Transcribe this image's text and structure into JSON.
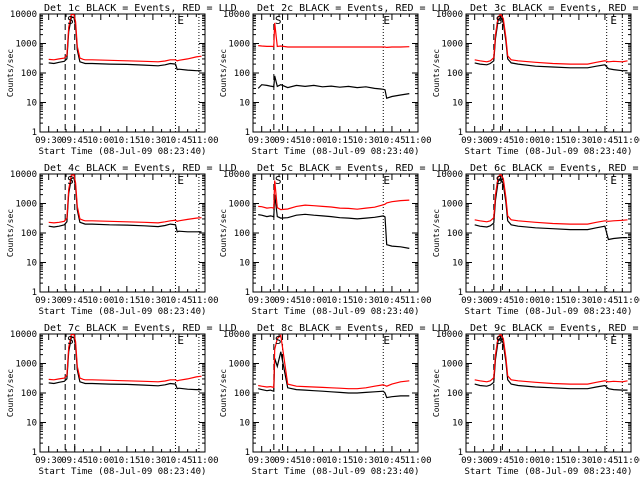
{
  "figure": {
    "type": "line",
    "start_time": "08-Jul-09 08:23:40",
    "xlabel": "Start Time (08-Jul-09 08:23:40)",
    "ylabel": "Counts/sec",
    "series_legend": "BLACK = Events, RED = LLD",
    "y_scale": "log",
    "ylim": [
      1,
      10000
    ],
    "y_ticks": [
      1,
      10,
      100,
      1000,
      10000
    ],
    "y_tick_labels": [
      "1",
      "10",
      "100",
      "1000",
      "10000"
    ],
    "x_tick_labels": [
      "09:30",
      "09:45",
      "10:00",
      "10:15",
      "10:30",
      "10:45",
      "11:00"
    ],
    "xlim_min": [
      0,
      95
    ],
    "x_ticks_min": [
      5,
      20,
      35,
      50,
      65,
      80,
      95
    ],
    "x_ticks_note": "minutes after 09:25",
    "colors": {
      "events": "#000000",
      "lld": "#ff0000",
      "axis": "#000000"
    },
    "markers": {
      "S": "S",
      "E": "E"
    }
  },
  "chart_data": [
    {
      "type": "line",
      "panel": 1,
      "title": "Det 1c BLACK = Events, RED = LLD",
      "ylim": [
        1,
        10000
      ],
      "x_min": [
        5,
        8,
        11,
        14,
        15.5,
        16.5,
        18,
        19.5,
        20.5,
        21.5,
        23,
        25,
        26,
        30,
        40,
        50,
        60,
        68,
        72,
        75,
        78,
        79,
        80,
        85,
        90,
        93
      ],
      "series": [
        {
          "name": "Events",
          "values": [
            220,
            210,
            230,
            250,
            300,
            2500,
            7500,
            7800,
            4000,
            600,
            240,
            220,
            210,
            210,
            200,
            195,
            185,
            175,
            190,
            210,
            200,
            130,
            135,
            125,
            120,
            120
          ]
        },
        {
          "name": "LLD",
          "values": [
            290,
            280,
            300,
            320,
            400,
            3500,
            9500,
            9800,
            5500,
            800,
            320,
            290,
            280,
            280,
            270,
            260,
            250,
            240,
            255,
            280,
            280,
            260,
            270,
            300,
            350,
            370
          ]
        }
      ],
      "markers": [
        {
          "label": "S",
          "x_min": 17.5
        },
        {
          "label": "E",
          "x_min": 81
        }
      ],
      "dash_lines_min": [
        14.5,
        20
      ],
      "dotted_lines_min": [
        78,
        91.5
      ]
    },
    {
      "type": "line",
      "panel": 2,
      "title": "Det 2c BLACK = Events, RED = LLD",
      "ylim": [
        1,
        10000
      ],
      "x_min": [
        3,
        5,
        8,
        10,
        11,
        12,
        12.5,
        14,
        16,
        20,
        25,
        30,
        35,
        40,
        45,
        50,
        55,
        60,
        65,
        70,
        75,
        76,
        77,
        80,
        85,
        90
      ],
      "series": [
        {
          "name": "Events",
          "values": [
            30,
            40,
            38,
            36,
            35,
            34,
            80,
            35,
            40,
            32,
            38,
            35,
            38,
            34,
            36,
            33,
            35,
            32,
            34,
            30,
            28,
            27,
            14,
            16,
            18,
            20
          ]
        },
        {
          "name": "LLD",
          "values": [
            850,
            820,
            800,
            800,
            800,
            780,
            5000,
            790,
            820,
            760,
            760,
            760,
            760,
            760,
            760,
            760,
            760,
            760,
            760,
            760,
            760,
            760,
            740,
            760,
            760,
            780
          ]
        }
      ],
      "markers": [
        {
          "label": "S",
          "x_min": 14.5
        },
        {
          "label": "E",
          "x_min": 77
        }
      ],
      "dash_lines_min": [
        12,
        17
      ],
      "dotted_lines_min": [
        75
      ]
    },
    {
      "type": "line",
      "panel": 3,
      "title": "Det 3c BLACK = Events, RED = LLD",
      "ylim": [
        1,
        10000
      ],
      "x_min": [
        5,
        8,
        12,
        14,
        16,
        17,
        18.5,
        20,
        21.5,
        23,
        24,
        26,
        30,
        40,
        50,
        60,
        70,
        75,
        80,
        82,
        85,
        90,
        93
      ],
      "series": [
        {
          "name": "Events",
          "values": [
            220,
            200,
            190,
            210,
            260,
            1500,
            6000,
            8000,
            5000,
            1200,
            300,
            220,
            200,
            170,
            160,
            150,
            150,
            170,
            190,
            140,
            130,
            120,
            120
          ]
        },
        {
          "name": "LLD",
          "values": [
            280,
            260,
            240,
            260,
            330,
            2000,
            8000,
            9800,
            7000,
            1600,
            380,
            280,
            260,
            230,
            210,
            200,
            200,
            230,
            260,
            240,
            250,
            240,
            260
          ]
        }
      ],
      "markers": [
        {
          "label": "S",
          "x_min": 19
        },
        {
          "label": "E",
          "x_min": 85
        }
      ],
      "dash_lines_min": [
        16,
        21
      ],
      "dotted_lines_min": [
        81,
        90
      ]
    },
    {
      "type": "line",
      "panel": 4,
      "title": "Det 4c BLACK = Events, RED = LLD",
      "ylim": [
        1,
        10000
      ],
      "x_min": [
        5,
        8,
        11,
        14,
        15.5,
        16.5,
        18,
        19.5,
        20.5,
        21.5,
        23,
        25,
        26,
        30,
        40,
        50,
        60,
        68,
        72,
        75,
        78,
        79,
        80,
        85,
        90,
        93
      ],
      "series": [
        {
          "name": "Events",
          "values": [
            170,
            160,
            170,
            190,
            240,
            2200,
            7000,
            7500,
            3800,
            600,
            230,
            210,
            200,
            200,
            190,
            185,
            175,
            165,
            180,
            200,
            190,
            110,
            115,
            110,
            110,
            110
          ]
        },
        {
          "name": "LLD",
          "values": [
            230,
            220,
            230,
            250,
            320,
            3000,
            9000,
            9500,
            5000,
            800,
            300,
            270,
            260,
            260,
            250,
            240,
            230,
            220,
            240,
            260,
            270,
            250,
            260,
            290,
            320,
            330
          ]
        }
      ],
      "markers": [
        {
          "label": "S",
          "x_min": 17.5
        },
        {
          "label": "E",
          "x_min": 81
        }
      ],
      "dash_lines_min": [
        14.5,
        20
      ],
      "dotted_lines_min": [
        78,
        91.5
      ]
    },
    {
      "type": "line",
      "panel": 5,
      "title": "Det 5c BLACK = Events, RED = LLD",
      "ylim": [
        1,
        10000
      ],
      "x_min": [
        3,
        5,
        8,
        10,
        11,
        12,
        12.5,
        14,
        16,
        20,
        25,
        30,
        35,
        40,
        45,
        50,
        55,
        60,
        65,
        70,
        75,
        76,
        77,
        80,
        85,
        90
      ],
      "series": [
        {
          "name": "Events",
          "values": [
            420,
            400,
            360,
            380,
            370,
            350,
            2000,
            360,
            320,
            330,
            400,
            430,
            400,
            380,
            360,
            330,
            320,
            300,
            320,
            340,
            380,
            350,
            40,
            36,
            34,
            30
          ]
        },
        {
          "name": "LLD",
          "values": [
            800,
            780,
            700,
            720,
            720,
            700,
            6000,
            720,
            620,
            650,
            800,
            880,
            840,
            800,
            760,
            700,
            680,
            640,
            700,
            750,
            900,
            950,
            1050,
            1150,
            1250,
            1300
          ]
        }
      ],
      "markers": [
        {
          "label": "S",
          "x_min": 14.5
        },
        {
          "label": "E",
          "x_min": 77
        }
      ],
      "dash_lines_min": [
        12,
        17
      ],
      "dotted_lines_min": [
        75
      ]
    },
    {
      "type": "line",
      "panel": 6,
      "title": "Det 6c BLACK = Events, RED = LLD",
      "ylim": [
        1,
        10000
      ],
      "x_min": [
        5,
        8,
        12,
        14,
        16,
        17,
        18.5,
        20,
        21.5,
        23,
        24,
        26,
        30,
        40,
        50,
        60,
        70,
        75,
        80,
        82,
        85,
        90,
        93
      ],
      "series": [
        {
          "name": "Events",
          "values": [
            190,
            170,
            160,
            175,
            220,
            1300,
            5500,
            7500,
            4500,
            1100,
            260,
            190,
            170,
            150,
            140,
            130,
            130,
            150,
            170,
            60,
            65,
            70,
            70
          ]
        },
        {
          "name": "LLD",
          "values": [
            280,
            260,
            240,
            260,
            330,
            2000,
            8000,
            9800,
            7000,
            1600,
            380,
            280,
            260,
            230,
            210,
            200,
            200,
            230,
            260,
            250,
            260,
            270,
            280
          ]
        }
      ],
      "markers": [
        {
          "label": "S",
          "x_min": 19
        },
        {
          "label": "E",
          "x_min": 85
        }
      ],
      "dash_lines_min": [
        16,
        21
      ],
      "dotted_lines_min": [
        81,
        90
      ]
    },
    {
      "type": "line",
      "panel": 7,
      "title": "Det 7c BLACK = Events, RED = LLD",
      "ylim": [
        1,
        10000
      ],
      "x_min": [
        5,
        8,
        11,
        14,
        15.5,
        16.5,
        18,
        19.5,
        20.5,
        21.5,
        23,
        25,
        26,
        30,
        40,
        50,
        60,
        68,
        72,
        75,
        78,
        79,
        80,
        85,
        90,
        93
      ],
      "series": [
        {
          "name": "Events",
          "values": [
            220,
            210,
            230,
            250,
            300,
            2500,
            7500,
            7800,
            4000,
            600,
            240,
            220,
            210,
            210,
            200,
            195,
            185,
            175,
            190,
            210,
            200,
            140,
            145,
            135,
            130,
            130
          ]
        },
        {
          "name": "LLD",
          "values": [
            290,
            280,
            300,
            320,
            400,
            3500,
            9500,
            9800,
            5500,
            800,
            320,
            290,
            280,
            280,
            270,
            260,
            250,
            240,
            255,
            280,
            280,
            260,
            270,
            300,
            350,
            370
          ]
        }
      ],
      "markers": [
        {
          "label": "S",
          "x_min": 17.5
        },
        {
          "label": "E",
          "x_min": 81
        }
      ],
      "dash_lines_min": [
        14.5,
        20
      ],
      "dotted_lines_min": [
        78,
        91.5
      ]
    },
    {
      "type": "line",
      "panel": 8,
      "title": "Det 8c BLACK = Events, RED = LLD",
      "ylim": [
        1,
        10000
      ],
      "x_min": [
        3,
        5,
        8,
        10,
        11,
        12,
        12.5,
        14,
        16,
        20,
        25,
        30,
        35,
        40,
        45,
        50,
        55,
        60,
        65,
        70,
        75,
        76,
        77,
        80,
        85,
        90
      ],
      "series": [
        {
          "name": "Events",
          "values": [
            140,
            130,
            120,
            125,
            120,
            115,
            1500,
            800,
            2500,
            150,
            130,
            125,
            120,
            115,
            110,
            105,
            100,
            100,
            105,
            110,
            115,
            100,
            70,
            75,
            80,
            80
          ]
        },
        {
          "name": "LLD",
          "values": [
            180,
            170,
            160,
            165,
            160,
            155,
            3000,
            7000,
            9000,
            200,
            170,
            165,
            160,
            155,
            150,
            145,
            140,
            140,
            150,
            170,
            190,
            180,
            170,
            200,
            240,
            260
          ]
        }
      ],
      "markers": [
        {
          "label": "S",
          "x_min": 14.5
        },
        {
          "label": "E",
          "x_min": 77
        }
      ],
      "dash_lines_min": [
        12,
        17
      ],
      "dotted_lines_min": [
        75
      ]
    },
    {
      "type": "line",
      "panel": 9,
      "title": "Det 9c BLACK = Events, RED = LLD",
      "ylim": [
        1,
        10000
      ],
      "x_min": [
        5,
        8,
        12,
        14,
        16,
        17,
        18.5,
        20,
        21.5,
        23,
        24,
        26,
        30,
        40,
        50,
        60,
        70,
        75,
        80,
        82,
        85,
        90,
        93
      ],
      "series": [
        {
          "name": "Events",
          "values": [
            200,
            180,
            170,
            185,
            230,
            1400,
            5800,
            7700,
            4700,
            1150,
            280,
            200,
            180,
            160,
            150,
            140,
            140,
            160,
            180,
            140,
            130,
            125,
            125
          ]
        },
        {
          "name": "LLD",
          "values": [
            280,
            260,
            240,
            260,
            330,
            2000,
            8000,
            9800,
            7000,
            1600,
            380,
            280,
            260,
            230,
            210,
            200,
            200,
            230,
            260,
            240,
            250,
            240,
            260
          ]
        }
      ],
      "markers": [
        {
          "label": "S",
          "x_min": 19
        },
        {
          "label": "E",
          "x_min": 85
        }
      ],
      "dash_lines_min": [
        16,
        21
      ],
      "dotted_lines_min": [
        81,
        90
      ]
    }
  ]
}
